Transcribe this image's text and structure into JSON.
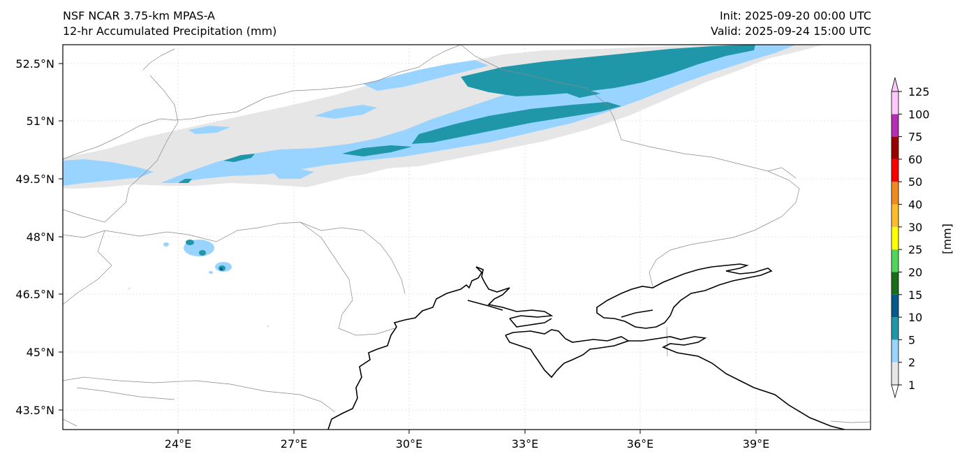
{
  "header": {
    "model": "NSF NCAR 3.75-km MPAS-A",
    "field": "12-hr Accumulated Precipitation (mm)",
    "init": "Init: 2025-09-20 00:00 UTC",
    "valid": "Valid: 2025-09-24 15:00 UTC"
  },
  "map": {
    "lon_ticks": [
      "24°E",
      "27°E",
      "30°E",
      "33°E",
      "36°E",
      "39°E"
    ],
    "lat_ticks": [
      "52.5°N",
      "51°N",
      "49.5°N",
      "48°N",
      "46.5°N",
      "45°N",
      "43.5°N"
    ]
  },
  "colorbar": {
    "unit_label": "[mm]",
    "levels": [
      "1",
      "2",
      "5",
      "10",
      "15",
      "20",
      "25",
      "30",
      "40",
      "50",
      "60",
      "75",
      "100",
      "125"
    ],
    "colors": [
      "#e6e6e6",
      "#99d3ff",
      "#1f97a9",
      "#065a8a",
      "#1a6e1a",
      "#4fd65a",
      "#ffff00",
      "#fbbd2b",
      "#f08a1e",
      "#ff0000",
      "#990000",
      "#b62db5",
      "#ffc8fb"
    ],
    "extend_low_color": "#ffffff",
    "extend_high_color": "#ffc8fb"
  }
}
